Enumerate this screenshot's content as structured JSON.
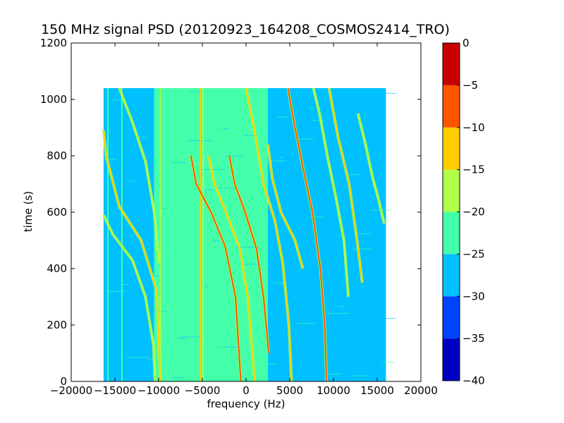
{
  "chart_data": {
    "type": "heatmap",
    "title": "150 MHz signal PSD (20120923_164208_COSMOS2414_TRO)",
    "xlabel": "frequency (Hz)",
    "ylabel": "time (s)",
    "xlim": [
      -20000,
      20000
    ],
    "ylim": [
      0,
      1200
    ],
    "xticks": [
      -20000,
      -15000,
      -10000,
      -5000,
      0,
      5000,
      10000,
      15000,
      20000
    ],
    "xtick_labels": [
      "−20000",
      "−15000",
      "−10000",
      "−5000",
      "0",
      "5000",
      "10000",
      "15000",
      "20000"
    ],
    "yticks": [
      0,
      200,
      400,
      600,
      800,
      1000,
      1200
    ],
    "ytick_labels": [
      "0",
      "200",
      "400",
      "600",
      "800",
      "1000",
      "1200"
    ],
    "data_extent": {
      "x": [
        -16300,
        16000
      ],
      "y": [
        0,
        1040
      ]
    },
    "colorbar": {
      "min": -40,
      "max": 0,
      "levels": [
        -40,
        -35,
        -30,
        -25,
        -20,
        -15,
        -10,
        -5,
        0
      ],
      "tick_labels": [
        "−40",
        "−35",
        "−30",
        "−25",
        "−20",
        "−15",
        "−10",
        "−5",
        "0"
      ],
      "colors": [
        "#0000c4",
        "#0044ff",
        "#00c0ff",
        "#44ffaa",
        "#b0ff48",
        "#ffcc00",
        "#ff5500",
        "#c80000"
      ]
    },
    "background_regions": [
      {
        "x_range": [
          -16300,
          -10500
        ],
        "level": -27.5
      },
      {
        "x_range": [
          -10500,
          2500
        ],
        "level": -22.5
      },
      {
        "x_range": [
          2500,
          16000
        ],
        "level": -27.5
      }
    ],
    "vertical_lines": [
      {
        "x": -15800,
        "level": -22.5
      },
      {
        "x": -14200,
        "level": -22.5
      },
      {
        "x": -9800,
        "level": -17.5
      },
      {
        "x": -9100,
        "level": -22.5
      },
      {
        "x": -5200,
        "level": -12.5
      },
      {
        "x": -4900,
        "level": -17.5
      },
      {
        "x": -2600,
        "level": -22.5
      }
    ],
    "trails": [
      {
        "name": "",
        "level": -12.5,
        "points": [
          [
            -16300,
            890
          ],
          [
            -16000,
            800
          ],
          [
            -14500,
            620
          ],
          [
            -12000,
            500
          ],
          [
            -10200,
            320
          ],
          [
            -9800,
            0
          ]
        ]
      },
      {
        "name": "",
        "level": -17.5,
        "points": [
          [
            -16300,
            590
          ],
          [
            -15200,
            520
          ],
          [
            -13000,
            430
          ],
          [
            -11500,
            300
          ],
          [
            -10600,
            130
          ],
          [
            -10400,
            0
          ]
        ]
      },
      {
        "name": "",
        "level": -17.5,
        "points": [
          [
            -14500,
            1040
          ],
          [
            -13000,
            920
          ],
          [
            -11500,
            780
          ],
          [
            -10500,
            600
          ],
          [
            -10000,
            420
          ]
        ]
      },
      {
        "name": "",
        "level": -7.5,
        "points": [
          [
            -6300,
            800
          ],
          [
            -5700,
            700
          ],
          [
            -4000,
            600
          ],
          [
            -2400,
            480
          ],
          [
            -1200,
            300
          ],
          [
            -600,
            0
          ]
        ]
      },
      {
        "name": "",
        "level": -12.5,
        "points": [
          [
            -4300,
            800
          ],
          [
            -3600,
            700
          ],
          [
            -2300,
            600
          ],
          [
            -700,
            470
          ],
          [
            200,
            300
          ],
          [
            1000,
            0
          ]
        ]
      },
      {
        "name": "",
        "level": -7.5,
        "points": [
          [
            -1900,
            800
          ],
          [
            -1300,
            700
          ],
          [
            -100,
            600
          ],
          [
            1200,
            470
          ],
          [
            2000,
            300
          ],
          [
            2600,
            100
          ]
        ]
      },
      {
        "name": "",
        "level": -12.5,
        "points": [
          [
            0,
            1040
          ],
          [
            900,
            900
          ],
          [
            2000,
            700
          ],
          [
            3300,
            570
          ],
          [
            4200,
            420
          ],
          [
            4900,
            200
          ],
          [
            5200,
            0
          ]
        ]
      },
      {
        "name": "",
        "level": -12.5,
        "points": [
          [
            2500,
            840
          ],
          [
            3000,
            720
          ],
          [
            4000,
            600
          ],
          [
            5600,
            500
          ],
          [
            6500,
            400
          ]
        ]
      },
      {
        "name": "",
        "level": -7.5,
        "points": [
          [
            4800,
            1040
          ],
          [
            5600,
            900
          ],
          [
            6500,
            760
          ],
          [
            7600,
            600
          ],
          [
            8500,
            400
          ],
          [
            9000,
            200
          ],
          [
            9200,
            0
          ]
        ]
      },
      {
        "name": "",
        "level": -17.5,
        "points": [
          [
            7700,
            1040
          ],
          [
            8400,
            950
          ],
          [
            9300,
            800
          ],
          [
            10300,
            650
          ],
          [
            11200,
            500
          ],
          [
            11700,
            300
          ]
        ]
      },
      {
        "name": "",
        "level": -12.5,
        "points": [
          [
            9500,
            1040
          ],
          [
            10500,
            870
          ],
          [
            11800,
            700
          ],
          [
            12700,
            500
          ],
          [
            13300,
            350
          ]
        ]
      },
      {
        "name": "",
        "level": -17.5,
        "points": [
          [
            12800,
            950
          ],
          [
            13600,
            850
          ],
          [
            14500,
            720
          ],
          [
            15200,
            640
          ],
          [
            15800,
            560
          ]
        ]
      }
    ]
  }
}
